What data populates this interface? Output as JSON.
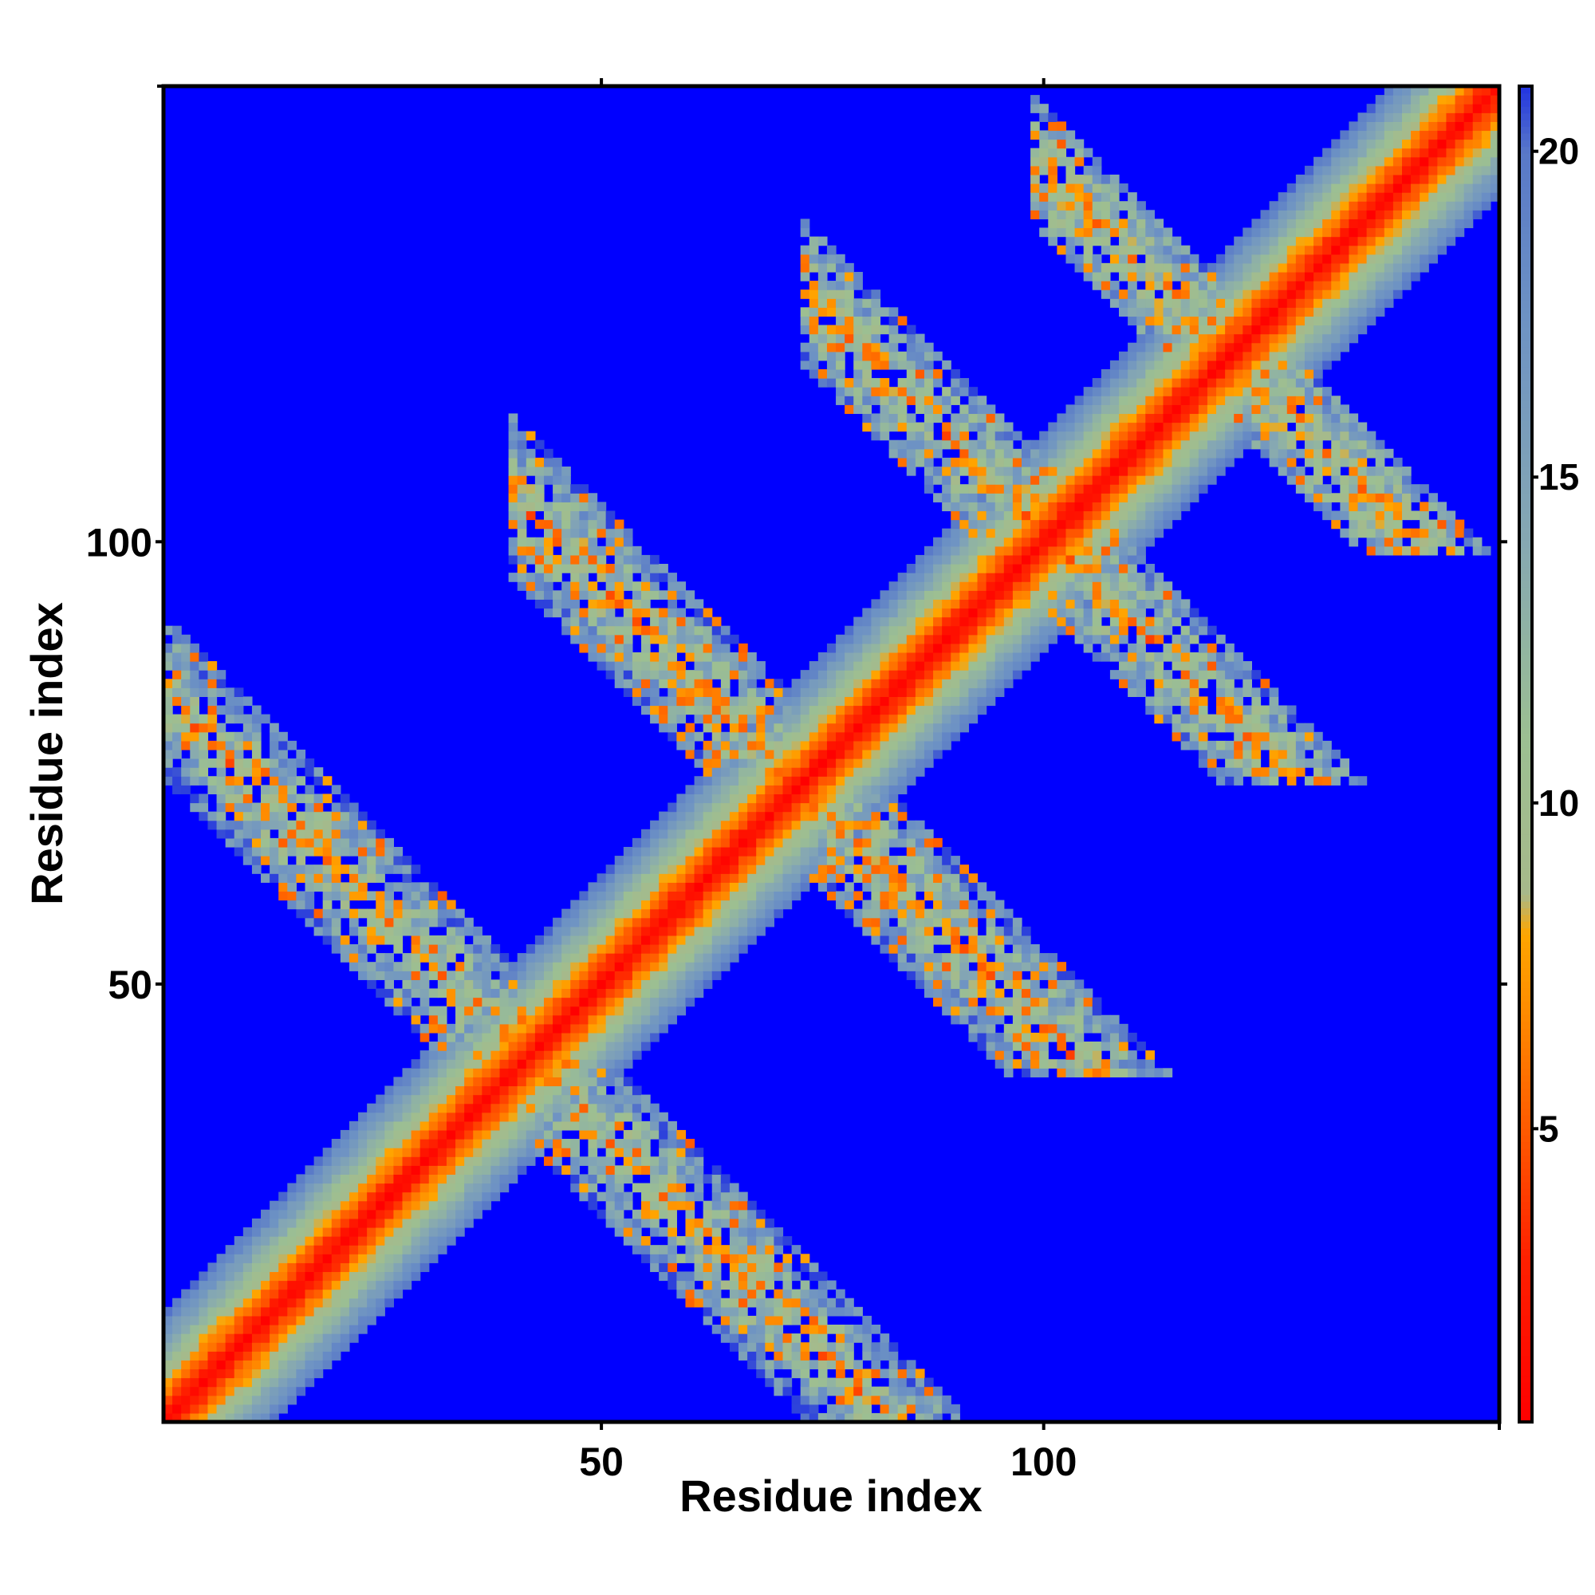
{
  "chart_data": {
    "type": "heatmap",
    "title": "",
    "xlabel": "Residue index",
    "ylabel": "Residue index",
    "n_residues": 151,
    "xlim": [
      1,
      151
    ],
    "ylim": [
      1,
      151
    ],
    "x_ticks": [
      50,
      100
    ],
    "y_ticks": [
      50,
      100
    ],
    "colorbar": {
      "ticks": [
        5,
        10,
        15,
        20
      ],
      "range": [
        0.5,
        21
      ],
      "background_color": "#0000ff",
      "stops": [
        {
          "value": 0.5,
          "color": "#ff0000"
        },
        {
          "value": 3.0,
          "color": "#ff2000"
        },
        {
          "value": 5.0,
          "color": "#ff5a00"
        },
        {
          "value": 7.0,
          "color": "#ff9000"
        },
        {
          "value": 8.0,
          "color": "#ffa500"
        },
        {
          "value": 8.6,
          "color": "#a7b98a"
        },
        {
          "value": 11.0,
          "color": "#9cbf92"
        },
        {
          "value": 14.0,
          "color": "#86a8b2"
        },
        {
          "value": 17.5,
          "color": "#6d92c4"
        },
        {
          "value": 20.0,
          "color": "#5878c8"
        },
        {
          "value": 21.0,
          "color": "#2233e0"
        }
      ]
    },
    "description_of_values": "symmetric pairwise residue distance map; strong diagonal with antiparallel hairpin bands",
    "diagonal": {
      "width": 12
    },
    "hairpin_bands": [
      {
        "center_sum": 83,
        "i_range": [
          1,
          41
        ],
        "width": 9
      },
      {
        "center_sum": 145,
        "i_range": [
          42,
          74
        ],
        "width": 9
      },
      {
        "center_sum": 201,
        "i_range": [
          75,
          101
        ],
        "width": 8
      },
      {
        "center_sum": 242,
        "i_range": [
          101,
          122
        ],
        "width": 7
      }
    ],
    "grid": false,
    "legend": "colorbar-right"
  }
}
